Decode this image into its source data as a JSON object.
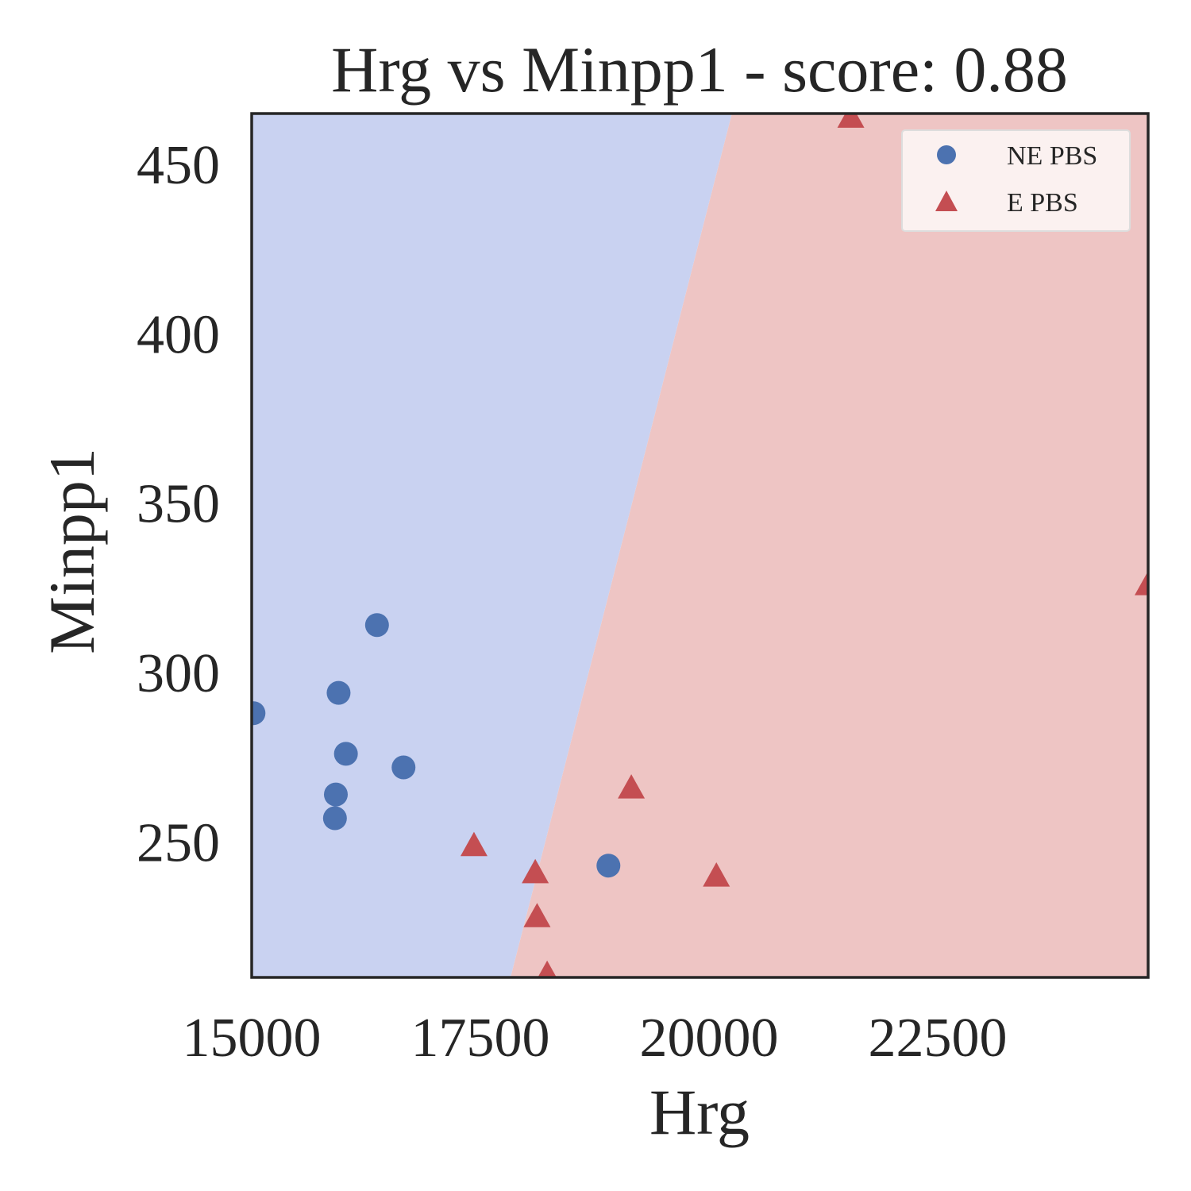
{
  "chart_data": {
    "type": "scatter",
    "title": "Hrg vs Minpp1 - score: 0.88",
    "xlabel": "Hrg",
    "ylabel": "Minpp1",
    "xlim": [
      15000,
      24800
    ],
    "ylim": [
      210,
      465
    ],
    "xticks": [
      15000,
      17500,
      20000,
      22500
    ],
    "yticks": [
      250,
      300,
      350,
      400,
      450
    ],
    "grid": false,
    "legend_position": "top-right",
    "decision_boundary": [
      [
        17830,
        210
      ],
      [
        20250,
        465
      ]
    ],
    "regions": {
      "left": {
        "label": "NE PBS",
        "color": "#c9d2f1"
      },
      "right": {
        "label": "E PBS",
        "color": "#eec5c4"
      }
    },
    "series": [
      {
        "name": "NE PBS",
        "marker": "circle",
        "color": "#4c72b0",
        "points": [
          [
            15020,
            288
          ],
          [
            15950,
            294
          ],
          [
            16030,
            276
          ],
          [
            16370,
            314
          ],
          [
            16660,
            272
          ],
          [
            15920,
            264
          ],
          [
            15910,
            257
          ],
          [
            18900,
            243
          ]
        ]
      },
      {
        "name": "E PBS",
        "marker": "triangle",
        "color": "#c44e52",
        "points": [
          [
            21550,
            464
          ],
          [
            24800,
            326
          ],
          [
            19150,
            266
          ],
          [
            17430,
            249
          ],
          [
            18100,
            241
          ],
          [
            20080,
            240
          ],
          [
            18120,
            228
          ],
          [
            18230,
            211
          ]
        ]
      }
    ]
  }
}
